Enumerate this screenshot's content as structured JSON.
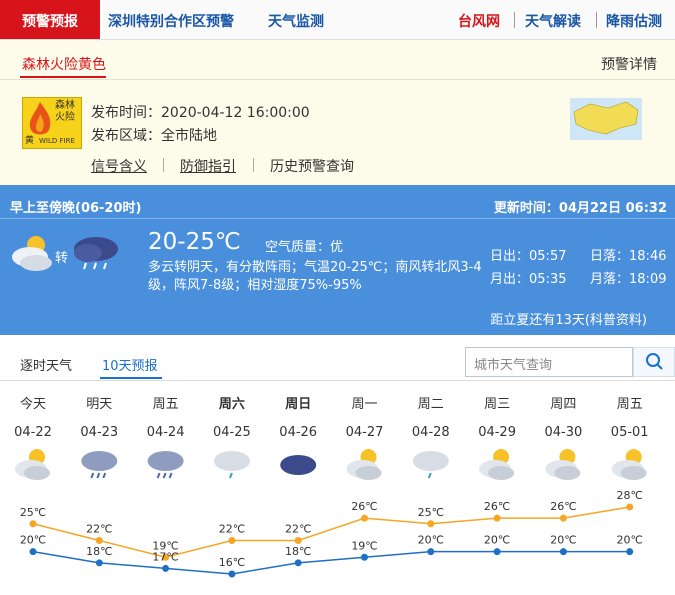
{
  "nav": {
    "active": "预警预报",
    "links": [
      "深圳特别合作区预警",
      "天气监测"
    ],
    "right_links": [
      "台风网",
      "天气解读",
      "降雨估测"
    ]
  },
  "warning": {
    "tab": "森林火险黄色",
    "detail_link": "预警详情",
    "icon_text": [
      "森林",
      "火险",
      "黄",
      "WILD FIRE"
    ],
    "publish_time_label": "发布时间：",
    "publish_time": "2020-04-12 16:00:00",
    "area_label": "发布区域：",
    "area": "全市陆地",
    "links": [
      "信号含义",
      "防御指引",
      "历史预警查询"
    ]
  },
  "today": {
    "period": "早上至傍晚(06-20时)",
    "update_label": "更新时间：",
    "update_time": "04月22日 06:32",
    "turn": "转",
    "temp_range": "20-25℃",
    "air_quality_label": "空气质量：",
    "air_quality": "优",
    "description": "多云转阴天，有分散阵雨；气温20-25℃；南风转北风3-4级，阵风7-8级；相对湿度75%-95%",
    "sunrise_label": "日出：",
    "sunrise": "05:57",
    "sunset_label": "日落：",
    "sunset": "18:46",
    "moonrise_label": "月出：",
    "moonrise": "05:35",
    "moonset_label": "月落：",
    "moonset": "18:09",
    "solar_term_note": "距立夏还有13天(科普资料)"
  },
  "forecast": {
    "tabs": [
      "逐时天气",
      "10天预报"
    ],
    "search_placeholder": "城市天气查询"
  },
  "chart_data": {
    "type": "line",
    "categories": [
      "今天",
      "明天",
      "周五",
      "周六",
      "周日",
      "周一",
      "周二",
      "周三",
      "周四",
      "周五"
    ],
    "dates": [
      "04-22",
      "04-23",
      "04-24",
      "04-25",
      "04-26",
      "04-27",
      "04-28",
      "04-29",
      "04-30",
      "05-01"
    ],
    "series": [
      {
        "color": "#f5a623",
        "values": [
          25,
          22,
          19,
          22,
          22,
          26,
          25,
          26,
          26,
          28
        ],
        "value_labels": [
          "25℃",
          "22℃",
          "19℃",
          "22℃",
          "22℃",
          "26℃",
          "25℃",
          "26℃",
          "26℃",
          "28℃"
        ]
      },
      {
        "color": "#1f6fc5",
        "values": [
          20,
          18,
          17,
          16,
          18,
          19,
          20,
          20,
          20,
          20
        ],
        "value_labels": [
          "20℃",
          "18℃",
          "17℃",
          "16℃",
          "18℃",
          "19℃",
          "20℃",
          "20℃",
          "20℃",
          "20℃"
        ]
      }
    ]
  }
}
